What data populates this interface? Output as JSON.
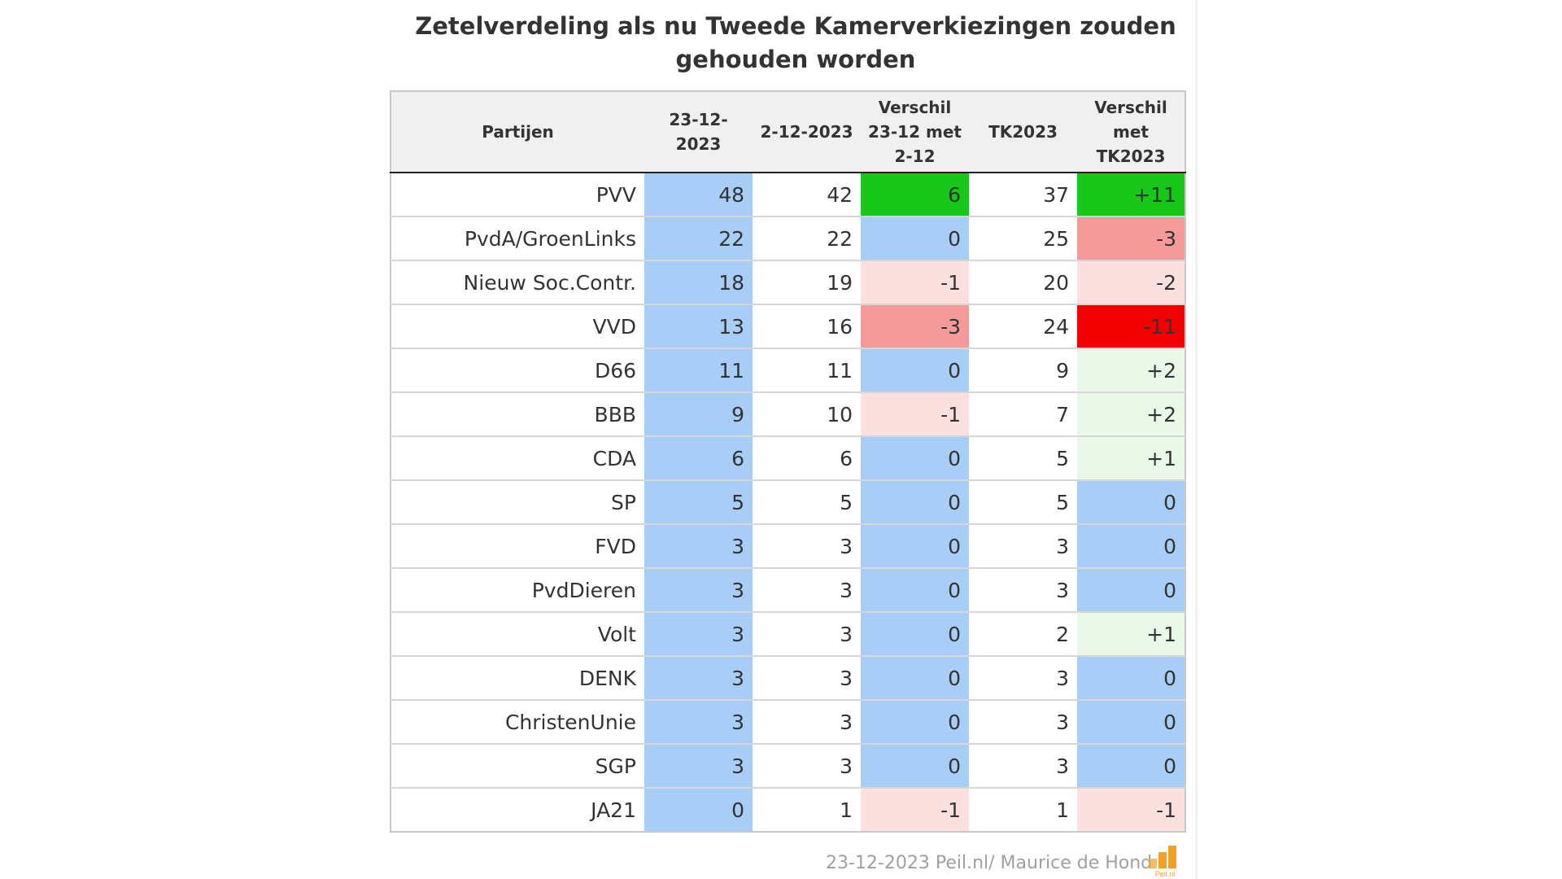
{
  "title": "Zetelverdeling als nu Tweede Kamerverkiezingen zouden gehouden worden",
  "columns": {
    "party": "Partijen",
    "current": "23-12-2023",
    "previous": "2-12-2023",
    "diff_prev": "Verschil 23-12 met 2-12",
    "election": "TK2023",
    "diff_election": "Verschil met TK2023"
  },
  "chart_data": {
    "type": "table",
    "title": "Zetelverdeling als nu Tweede Kamerverkiezingen zouden gehouden worden",
    "rows": [
      {
        "party": "PVV",
        "current": "48",
        "previous": "42",
        "diff_prev": "6",
        "election": "37",
        "diff_election": "+11"
      },
      {
        "party": "PvdA/GroenLinks",
        "current": "22",
        "previous": "22",
        "diff_prev": "0",
        "election": "25",
        "diff_election": "-3"
      },
      {
        "party": "Nieuw Soc.Contr.",
        "current": "18",
        "previous": "19",
        "diff_prev": "-1",
        "election": "20",
        "diff_election": "-2"
      },
      {
        "party": "VVD",
        "current": "13",
        "previous": "16",
        "diff_prev": "-3",
        "election": "24",
        "diff_election": "-11"
      },
      {
        "party": "D66",
        "current": "11",
        "previous": "11",
        "diff_prev": "0",
        "election": "9",
        "diff_election": "+2"
      },
      {
        "party": "BBB",
        "current": "9",
        "previous": "10",
        "diff_prev": "-1",
        "election": "7",
        "diff_election": "+2"
      },
      {
        "party": "CDA",
        "current": "6",
        "previous": "6",
        "diff_prev": "0",
        "election": "5",
        "diff_election": "+1"
      },
      {
        "party": "SP",
        "current": "5",
        "previous": "5",
        "diff_prev": "0",
        "election": "5",
        "diff_election": "0"
      },
      {
        "party": "FVD",
        "current": "3",
        "previous": "3",
        "diff_prev": "0",
        "election": "3",
        "diff_election": "0"
      },
      {
        "party": "PvdDieren",
        "current": "3",
        "previous": "3",
        "diff_prev": "0",
        "election": "3",
        "diff_election": "0"
      },
      {
        "party": "Volt",
        "current": "3",
        "previous": "3",
        "diff_prev": "0",
        "election": "2",
        "diff_election": "+1"
      },
      {
        "party": "DENK",
        "current": "3",
        "previous": "3",
        "diff_prev": "0",
        "election": "3",
        "diff_election": "0"
      },
      {
        "party": "ChristenUnie",
        "current": "3",
        "previous": "3",
        "diff_prev": "0",
        "election": "3",
        "diff_election": "0"
      },
      {
        "party": "SGP",
        "current": "3",
        "previous": "3",
        "diff_prev": "0",
        "election": "3",
        "diff_election": "0"
      },
      {
        "party": "JA21",
        "current": "0",
        "previous": "1",
        "diff_prev": "-1",
        "election": "1",
        "diff_election": "-1"
      }
    ]
  },
  "colors": {
    "neutral": "#a8cdf6",
    "up_strong": "#17c81b",
    "up_light": "#eaf8ea",
    "down_light": "#fbe0e0",
    "down_medium": "#f59a9a",
    "down_strong": "#f20000"
  },
  "footer": {
    "source": "23-12-2023 Peil.nl/ Maurice de Hond",
    "logo_text": "Peil.nl"
  }
}
